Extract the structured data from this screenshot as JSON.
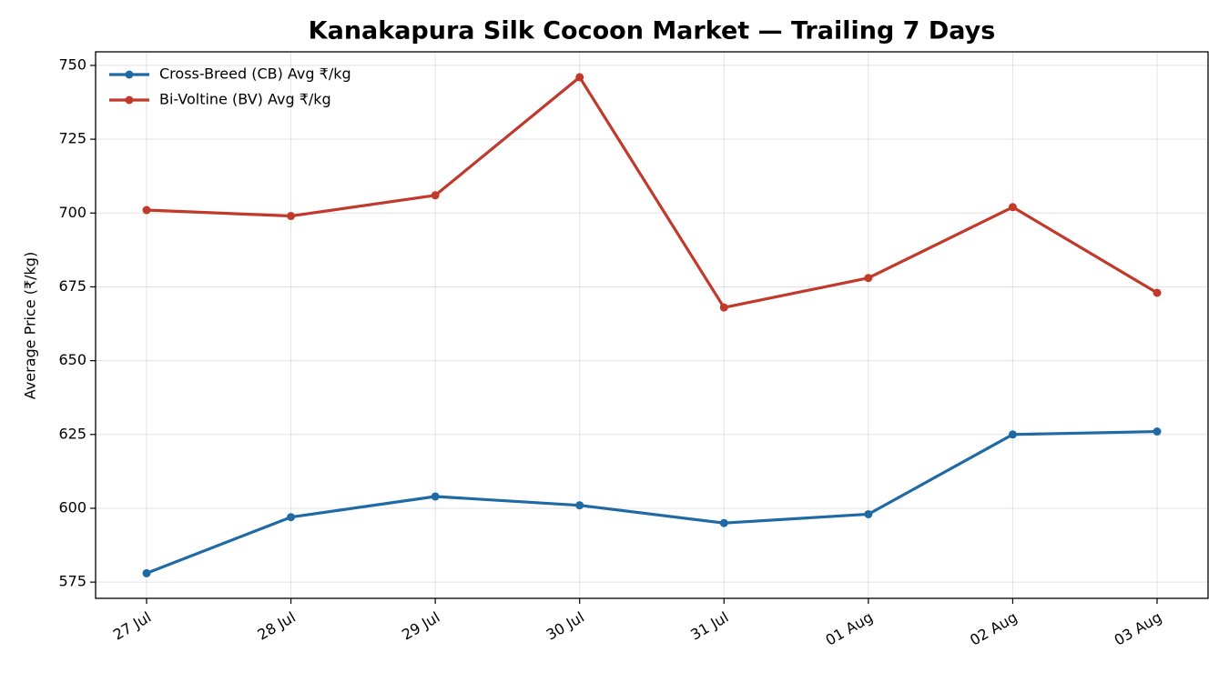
{
  "chart_data": {
    "type": "line",
    "title": "Kanakapura Silk Cocoon Market — Trailing 7 Days",
    "y_label": "Average Price (₹/kg)",
    "categories": [
      "27 Jul",
      "28 Jul",
      "29 Jul",
      "30 Jul",
      "31 Jul",
      "01 Aug",
      "02 Aug",
      "03 Aug"
    ],
    "series": [
      {
        "name": "Cross-Breed (CB) Avg ₹/kg",
        "color": "#1f6aa5",
        "values": [
          578,
          597,
          604,
          601,
          595,
          598,
          625,
          626
        ]
      },
      {
        "name": "Bi-Voltine (BV) Avg ₹/kg",
        "color": "#c0392b",
        "values": [
          701,
          699,
          706,
          746,
          668,
          678,
          702,
          673
        ]
      }
    ],
    "ylim": [
      569.5,
      754.6
    ],
    "yticks": [
      575,
      600,
      625,
      650,
      675,
      700,
      725,
      750
    ],
    "grid": true,
    "legend": "upper left"
  }
}
